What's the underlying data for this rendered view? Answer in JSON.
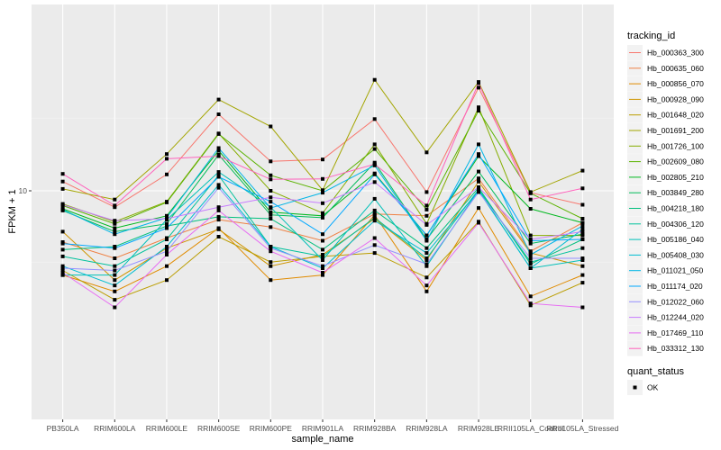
{
  "chart_data": {
    "type": "line",
    "title": "",
    "xlabel": "sample_name",
    "ylabel": "FPKM + 1",
    "y_scale": "log10",
    "ylim": [
      1.4,
      60
    ],
    "y_ticks": [
      10
    ],
    "y_tick_labels": [
      "10"
    ],
    "grid": true,
    "legend_placement": "right",
    "categories": [
      "PB350LA",
      "RRIM600LA",
      "RRIM600LE",
      "RRIM600SE",
      "RRIM600PE",
      "RRIM901LA",
      "RRIM928BA",
      "RRIM928LA",
      "RRIM928LE",
      "RRII105LA_Control",
      "RRII105LA_Stressed"
    ],
    "legend": {
      "color_title": "tracking_id",
      "shape_title": "quant_status",
      "shape_entries": [
        "OK"
      ]
    },
    "series": [
      {
        "name": "Hb_000363_300",
        "color": "#F8766D",
        "values": [
          11.6,
          7.7,
          13.0,
          34.0,
          16.0,
          16.5,
          31.5,
          9.8,
          52.0,
          9.7,
          8.0
        ]
      },
      {
        "name": "Hb_000635_060",
        "color": "#EE8043",
        "values": [
          4.4,
          3.4,
          4.7,
          6.3,
          5.6,
          4.5,
          6.9,
          6.7,
          12.2,
          3.8,
          6.0
        ]
      },
      {
        "name": "Hb_000856_070",
        "color": "#E08B00",
        "values": [
          2.6,
          2.0,
          3.0,
          5.5,
          2.4,
          2.6,
          6.8,
          2.0,
          7.6,
          1.85,
          2.6
        ]
      },
      {
        "name": "Hb_000928_090",
        "color": "#CF9400",
        "values": [
          5.2,
          2.4,
          4.0,
          5.4,
          3.0,
          3.6,
          6.4,
          3.3,
          11.6,
          3.7,
          3.0
        ]
      },
      {
        "name": "Hb_001648_020",
        "color": "#BB9D00",
        "values": [
          2.8,
          1.75,
          2.4,
          4.8,
          3.2,
          3.5,
          3.7,
          2.5,
          6.1,
          1.6,
          2.3
        ]
      },
      {
        "name": "Hb_001691_200",
        "color": "#A3A500",
        "values": [
          10.3,
          8.7,
          18.0,
          43.0,
          28.0,
          10.1,
          59.0,
          18.5,
          57.0,
          9.8,
          13.8
        ]
      },
      {
        "name": "Hb_001726_100",
        "color": "#85AD00",
        "values": [
          8.1,
          6.1,
          8.4,
          25.0,
          10.0,
          7.0,
          21.0,
          5.9,
          38.0,
          4.9,
          4.9
        ]
      },
      {
        "name": "Hb_002609_080",
        "color": "#5BB300",
        "values": [
          7.9,
          5.9,
          8.3,
          24.8,
          12.8,
          10.0,
          19.5,
          7.4,
          36.0,
          9.6,
          6.4
        ]
      },
      {
        "name": "Hb_002805_210",
        "color": "#00B81F",
        "values": [
          7.5,
          5.5,
          6.7,
          19.0,
          7.1,
          6.7,
          13.2,
          4.9,
          17.4,
          7.5,
          6.0
        ]
      },
      {
        "name": "Hb_003849_280",
        "color": "#00BC59",
        "values": [
          7.3,
          5.2,
          5.9,
          17.8,
          6.8,
          6.5,
          15.7,
          4.6,
          13.6,
          4.3,
          5.0
        ]
      },
      {
        "name": "Hb_004218_180",
        "color": "#00BF7D",
        "values": [
          3.9,
          4.1,
          5.7,
          6.6,
          6.4,
          3.9,
          7.3,
          4.0,
          10.5,
          3.1,
          4.6
        ]
      },
      {
        "name": "Hb_004306_120",
        "color": "#00C19C",
        "values": [
          3.5,
          3.0,
          4.6,
          12.8,
          4.1,
          3.5,
          6.5,
          3.4,
          10.2,
          3.2,
          4.0
        ]
      },
      {
        "name": "Hb_005186_040",
        "color": "#00C0B8",
        "values": [
          2.6,
          2.6,
          6.3,
          13.5,
          7.7,
          3.3,
          8.8,
          3.0,
          10.1,
          2.9,
          3.3
        ]
      },
      {
        "name": "Hb_005408_030",
        "color": "#00BDD0",
        "values": [
          3.0,
          2.2,
          4.1,
          11.0,
          4.1,
          2.9,
          6.2,
          3.7,
          10.0,
          2.9,
          5.4
        ]
      },
      {
        "name": "Hb_011021_050",
        "color": "#00B5E6",
        "values": [
          7.4,
          5.0,
          6.5,
          19.8,
          7.6,
          9.7,
          15.0,
          4.5,
          21.0,
          3.6,
          5.7
        ]
      },
      {
        "name": "Hb_011174_020",
        "color": "#00A8FF",
        "values": [
          4.3,
          4.0,
          5.5,
          12.5,
          8.4,
          5.0,
          13.0,
          4.9,
          18.0,
          4.5,
          4.6
        ]
      },
      {
        "name": "Hb_012022_060",
        "color": "#9590FF",
        "values": [
          2.9,
          2.8,
          3.8,
          10.5,
          4.0,
          3.0,
          4.2,
          3.1,
          9.8,
          3.4,
          3.4
        ]
      },
      {
        "name": "Hb_012244_020",
        "color": "#C77CFF",
        "values": [
          8.0,
          6.2,
          6.4,
          7.7,
          9.0,
          8.2,
          11.5,
          5.8,
          10.6,
          4.6,
          5.2
        ]
      },
      {
        "name": "Hb_017469_110",
        "color": "#E76BF3",
        "values": [
          2.7,
          1.55,
          3.6,
          7.3,
          3.8,
          2.7,
          4.7,
          2.2,
          6.0,
          1.65,
          1.55
        ]
      },
      {
        "name": "Hb_033312_130",
        "color": "#FF62BC",
        "values": [
          13.1,
          7.9,
          16.7,
          17.4,
          12.0,
          12.1,
          15.3,
          7.9,
          56.0,
          8.7,
          10.4
        ]
      }
    ]
  }
}
